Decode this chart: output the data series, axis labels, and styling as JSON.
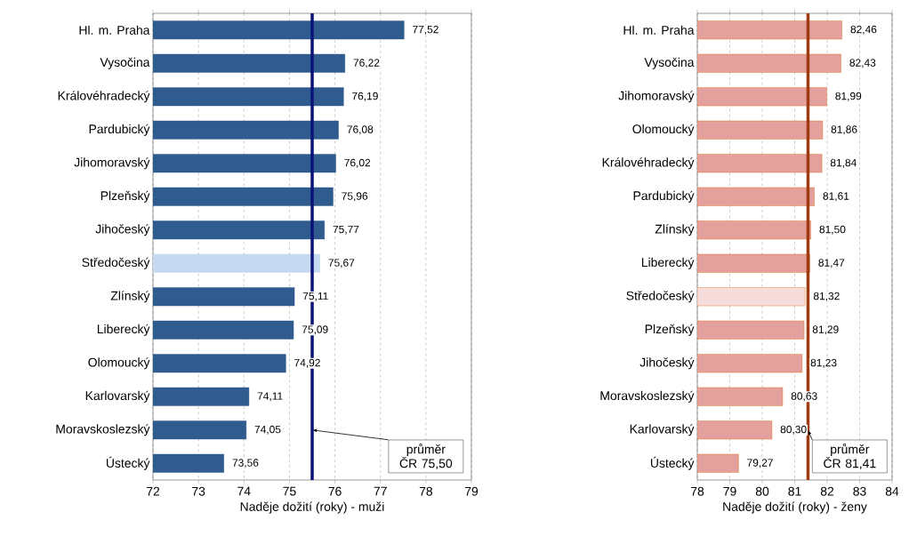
{
  "chart_data": [
    {
      "type": "bar",
      "orientation": "horizontal",
      "xlabel": "Naděje dožití (roky) - muži",
      "categories": [
        "Hl. m. Praha",
        "Vysočina",
        "Královéhradecký",
        "Pardubický",
        "Jihomoravský",
        "Plzeňský",
        "Jihočeský",
        "Středočeský",
        "Zlínský",
        "Liberecký",
        "Olomoucký",
        "Karlovarský",
        "Moravskoslezský",
        "Ústecký"
      ],
      "values": [
        77.52,
        76.22,
        76.19,
        76.08,
        76.02,
        75.96,
        75.77,
        75.67,
        75.11,
        75.09,
        74.92,
        74.11,
        74.05,
        73.56
      ],
      "value_labels": [
        "77,52",
        "76,22",
        "76,19",
        "76,08",
        "76,02",
        "75,96",
        "75,77",
        "75,67",
        "75,11",
        "75,09",
        "74,92",
        "74,11",
        "74,05",
        "73,56"
      ],
      "colors": [
        "#2f5b8e",
        "#2f5b8e",
        "#2f5b8e",
        "#2f5b8e",
        "#2f5b8e",
        "#2f5b8e",
        "#2f5b8e",
        "#c6d9f1",
        "#2f5b8e",
        "#2f5b8e",
        "#2f5b8e",
        "#2f5b8e",
        "#2f5b8e",
        "#2f5b8e"
      ],
      "xlim": [
        72,
        79
      ],
      "xticks": [
        72,
        73,
        74,
        75,
        76,
        77,
        78,
        79
      ],
      "grid": "x",
      "ref_lines": [
        {
          "axis": "x",
          "value": 75.5,
          "label": "průměr ČR 75,50",
          "color": "#0a1478"
        }
      ]
    },
    {
      "type": "bar",
      "orientation": "horizontal",
      "xlabel": "Naděje dožití (roky) - ženy",
      "categories": [
        "Hl. m. Praha",
        "Vysočina",
        "Jihomoravský",
        "Olomoucký",
        "Královéhradecký",
        "Pardubický",
        "Zlínský",
        "Liberecký",
        "Středočeský",
        "Plzeňský",
        "Jihočeský",
        "Moravskoslezský",
        "Karlovarský",
        "Ústecký"
      ],
      "values": [
        82.46,
        82.43,
        81.99,
        81.86,
        81.84,
        81.61,
        81.5,
        81.47,
        81.32,
        81.29,
        81.23,
        80.63,
        80.3,
        79.27
      ],
      "value_labels": [
        "82,46",
        "82,43",
        "81,99",
        "81,86",
        "81,84",
        "81,61",
        "81,50",
        "81,47",
        "81,32",
        "81,29",
        "81,23",
        "80,63",
        "80,30",
        "79,27"
      ],
      "colors": [
        "#e3a09c",
        "#e3a09c",
        "#e3a09c",
        "#e3a09c",
        "#e3a09c",
        "#e3a09c",
        "#e3a09c",
        "#e3a09c",
        "#f6dcda",
        "#e3a09c",
        "#e3a09c",
        "#e3a09c",
        "#e3a09c",
        "#e3a09c"
      ],
      "xlim": [
        78,
        84
      ],
      "xticks": [
        78,
        79,
        80,
        81,
        82,
        83,
        84
      ],
      "grid": "x",
      "ref_lines": [
        {
          "axis": "x",
          "value": 81.41,
          "label": "průměr ČR 81,41",
          "color": "#a03a10"
        }
      ]
    }
  ]
}
